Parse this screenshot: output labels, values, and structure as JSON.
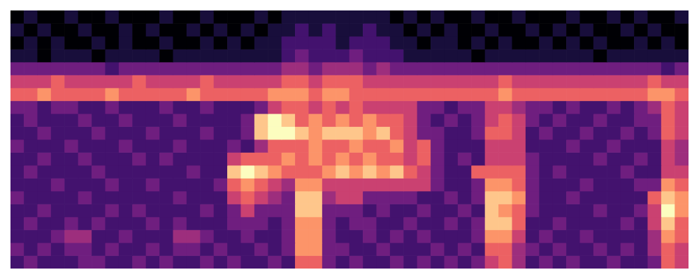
{
  "chart_data": {
    "type": "heatmap",
    "tick_labels": false,
    "zlim": [
      0,
      9
    ],
    "cells": [
      [
        0,
        1,
        0,
        0,
        1,
        0,
        0,
        1,
        0,
        0,
        0,
        1,
        0,
        0,
        1,
        0,
        0,
        0,
        1,
        0,
        1,
        1,
        1,
        1,
        1,
        1,
        1,
        1,
        0,
        1,
        0,
        1,
        0,
        0,
        1,
        0,
        0,
        1,
        0,
        0,
        0,
        1,
        0,
        0,
        1,
        0,
        1,
        0,
        0,
        1
      ],
      [
        1,
        0,
        1,
        0,
        0,
        1,
        0,
        0,
        1,
        0,
        1,
        0,
        0,
        1,
        0,
        1,
        0,
        1,
        0,
        1,
        1,
        2,
        1,
        2,
        1,
        1,
        2,
        1,
        1,
        0,
        1,
        0,
        1,
        0,
        0,
        1,
        0,
        0,
        1,
        0,
        1,
        0,
        1,
        0,
        0,
        1,
        0,
        1,
        0,
        0
      ],
      [
        0,
        1,
        0,
        1,
        0,
        0,
        1,
        0,
        1,
        0,
        0,
        1,
        0,
        0,
        1,
        0,
        1,
        0,
        1,
        1,
        2,
        2,
        2,
        2,
        1,
        2,
        2,
        2,
        1,
        1,
        0,
        1,
        1,
        0,
        1,
        0,
        1,
        0,
        0,
        1,
        0,
        1,
        0,
        1,
        0,
        0,
        1,
        0,
        1,
        0
      ],
      [
        1,
        1,
        0,
        1,
        1,
        1,
        0,
        1,
        1,
        1,
        1,
        0,
        1,
        1,
        1,
        1,
        1,
        1,
        1,
        1,
        2,
        3,
        2,
        2,
        2,
        3,
        2,
        2,
        2,
        1,
        1,
        1,
        1,
        1,
        0,
        1,
        1,
        1,
        1,
        1,
        1,
        1,
        1,
        0,
        1,
        1,
        1,
        1,
        1,
        1
      ],
      [
        3,
        3,
        3,
        3,
        3,
        3,
        3,
        2,
        3,
        3,
        3,
        3,
        3,
        3,
        3,
        3,
        3,
        3,
        3,
        3,
        4,
        4,
        3,
        4,
        4,
        4,
        3,
        4,
        3,
        3,
        3,
        3,
        3,
        3,
        3,
        3,
        3,
        3,
        3,
        3,
        3,
        3,
        3,
        3,
        3,
        3,
        3,
        3,
        2,
        3
      ],
      [
        5,
        5,
        5,
        6,
        5,
        5,
        5,
        5,
        5,
        6,
        5,
        5,
        5,
        5,
        6,
        5,
        5,
        5,
        5,
        5,
        6,
        6,
        5,
        6,
        6,
        6,
        5,
        5,
        5,
        5,
        5,
        5,
        5,
        5,
        5,
        5,
        6,
        5,
        5,
        5,
        5,
        5,
        5,
        5,
        5,
        5,
        5,
        6,
        5,
        5
      ],
      [
        6,
        6,
        7,
        6,
        6,
        6,
        6,
        7,
        6,
        6,
        6,
        6,
        6,
        7,
        6,
        6,
        6,
        6,
        6,
        7,
        7,
        7,
        6,
        7,
        7,
        6,
        6,
        6,
        6,
        6,
        6,
        6,
        6,
        6,
        6,
        6,
        7,
        6,
        6,
        6,
        6,
        6,
        6,
        6,
        6,
        6,
        6,
        7,
        7,
        6
      ],
      [
        3,
        3,
        2,
        3,
        3,
        2,
        2,
        3,
        2,
        2,
        2,
        3,
        2,
        2,
        3,
        2,
        2,
        2,
        3,
        5,
        6,
        6,
        5,
        6,
        5,
        6,
        5,
        5,
        5,
        5,
        3,
        3,
        2,
        3,
        3,
        5,
        5,
        4,
        3,
        3,
        2,
        3,
        2,
        2,
        3,
        2,
        3,
        4,
        6,
        5
      ],
      [
        2,
        3,
        2,
        2,
        2,
        3,
        2,
        2,
        3,
        2,
        2,
        2,
        3,
        2,
        2,
        2,
        2,
        3,
        8,
        9,
        8,
        6,
        7,
        6,
        7,
        6,
        7,
        6,
        6,
        5,
        3,
        2,
        3,
        2,
        3,
        5,
        6,
        5,
        3,
        2,
        3,
        2,
        2,
        3,
        2,
        2,
        3,
        3,
        6,
        5
      ],
      [
        2,
        2,
        3,
        2,
        2,
        2,
        3,
        2,
        2,
        2,
        3,
        2,
        2,
        2,
        3,
        2,
        2,
        3,
        8,
        9,
        9,
        8,
        7,
        8,
        8,
        8,
        7,
        8,
        6,
        5,
        3,
        3,
        2,
        2,
        3,
        6,
        6,
        5,
        2,
        3,
        2,
        2,
        3,
        2,
        2,
        3,
        2,
        3,
        6,
        5
      ],
      [
        3,
        2,
        2,
        2,
        3,
        2,
        2,
        2,
        3,
        2,
        2,
        2,
        3,
        2,
        2,
        2,
        3,
        2,
        4,
        6,
        6,
        6,
        7,
        6,
        6,
        7,
        6,
        6,
        7,
        5,
        6,
        3,
        2,
        2,
        2,
        5,
        5,
        5,
        2,
        2,
        2,
        3,
        2,
        2,
        3,
        2,
        2,
        2,
        5,
        4
      ],
      [
        2,
        2,
        3,
        2,
        2,
        3,
        2,
        2,
        2,
        3,
        2,
        3,
        2,
        2,
        2,
        2,
        5,
        6,
        6,
        6,
        7,
        6,
        7,
        6,
        7,
        6,
        7,
        6,
        6,
        5,
        6,
        3,
        2,
        3,
        2,
        5,
        5,
        5,
        3,
        2,
        2,
        2,
        2,
        3,
        2,
        2,
        3,
        2,
        5,
        4
      ],
      [
        2,
        3,
        2,
        2,
        2,
        2,
        3,
        2,
        2,
        2,
        2,
        2,
        2,
        3,
        2,
        2,
        8,
        9,
        8,
        7,
        6,
        6,
        6,
        7,
        8,
        7,
        8,
        7,
        8,
        6,
        5,
        3,
        2,
        2,
        6,
        6,
        6,
        6,
        3,
        2,
        3,
        2,
        2,
        2,
        2,
        3,
        2,
        2,
        5,
        5
      ],
      [
        2,
        2,
        2,
        3,
        2,
        2,
        2,
        3,
        2,
        2,
        3,
        2,
        2,
        2,
        2,
        3,
        6,
        7,
        6,
        5,
        4,
        7,
        7,
        5,
        5,
        5,
        5,
        5,
        5,
        5,
        5,
        3,
        2,
        2,
        3,
        7,
        7,
        6,
        3,
        2,
        2,
        2,
        3,
        2,
        2,
        2,
        3,
        3,
        7,
        6
      ],
      [
        3,
        2,
        2,
        2,
        2,
        3,
        2,
        2,
        2,
        2,
        2,
        2,
        3,
        2,
        2,
        2,
        5,
        6,
        5,
        4,
        3,
        8,
        8,
        4,
        5,
        5,
        3,
        3,
        3,
        3,
        2,
        2,
        3,
        2,
        3,
        8,
        8,
        7,
        3,
        2,
        2,
        3,
        2,
        2,
        2,
        2,
        2,
        6,
        8,
        7
      ],
      [
        2,
        2,
        3,
        2,
        2,
        2,
        2,
        3,
        2,
        3,
        2,
        2,
        2,
        2,
        3,
        2,
        3,
        5,
        3,
        3,
        3,
        8,
        8,
        3,
        3,
        3,
        2,
        3,
        2,
        2,
        3,
        2,
        2,
        3,
        2,
        8,
        7,
        6,
        3,
        2,
        2,
        2,
        2,
        3,
        2,
        2,
        3,
        5,
        9,
        7
      ],
      [
        2,
        3,
        2,
        2,
        3,
        2,
        3,
        2,
        2,
        2,
        3,
        2,
        3,
        2,
        2,
        2,
        3,
        3,
        3,
        2,
        3,
        7,
        7,
        3,
        2,
        3,
        3,
        2,
        2,
        3,
        2,
        2,
        3,
        2,
        3,
        8,
        8,
        6,
        2,
        2,
        3,
        2,
        2,
        2,
        2,
        3,
        2,
        5,
        8,
        6
      ],
      [
        2,
        2,
        2,
        3,
        4,
        4,
        2,
        2,
        3,
        2,
        2,
        2,
        4,
        4,
        3,
        2,
        2,
        3,
        2,
        2,
        3,
        7,
        7,
        3,
        2,
        2,
        3,
        2,
        3,
        2,
        3,
        2,
        2,
        2,
        3,
        7,
        7,
        5,
        2,
        3,
        2,
        2,
        3,
        2,
        2,
        2,
        2,
        4,
        7,
        6
      ],
      [
        3,
        2,
        3,
        2,
        3,
        3,
        2,
        3,
        2,
        2,
        3,
        2,
        3,
        3,
        2,
        3,
        2,
        2,
        3,
        2,
        3,
        7,
        7,
        3,
        3,
        2,
        2,
        3,
        2,
        2,
        2,
        3,
        2,
        3,
        2,
        6,
        6,
        4,
        3,
        2,
        3,
        2,
        2,
        3,
        2,
        3,
        2,
        4,
        6,
        5
      ],
      [
        2,
        3,
        2,
        2,
        2,
        3,
        3,
        2,
        2,
        3,
        2,
        3,
        2,
        2,
        3,
        2,
        3,
        2,
        2,
        3,
        2,
        6,
        6,
        3,
        2,
        3,
        2,
        2,
        3,
        2,
        3,
        2,
        3,
        2,
        3,
        5,
        6,
        4,
        2,
        3,
        2,
        3,
        2,
        2,
        3,
        2,
        2,
        3,
        6,
        5
      ]
    ]
  }
}
